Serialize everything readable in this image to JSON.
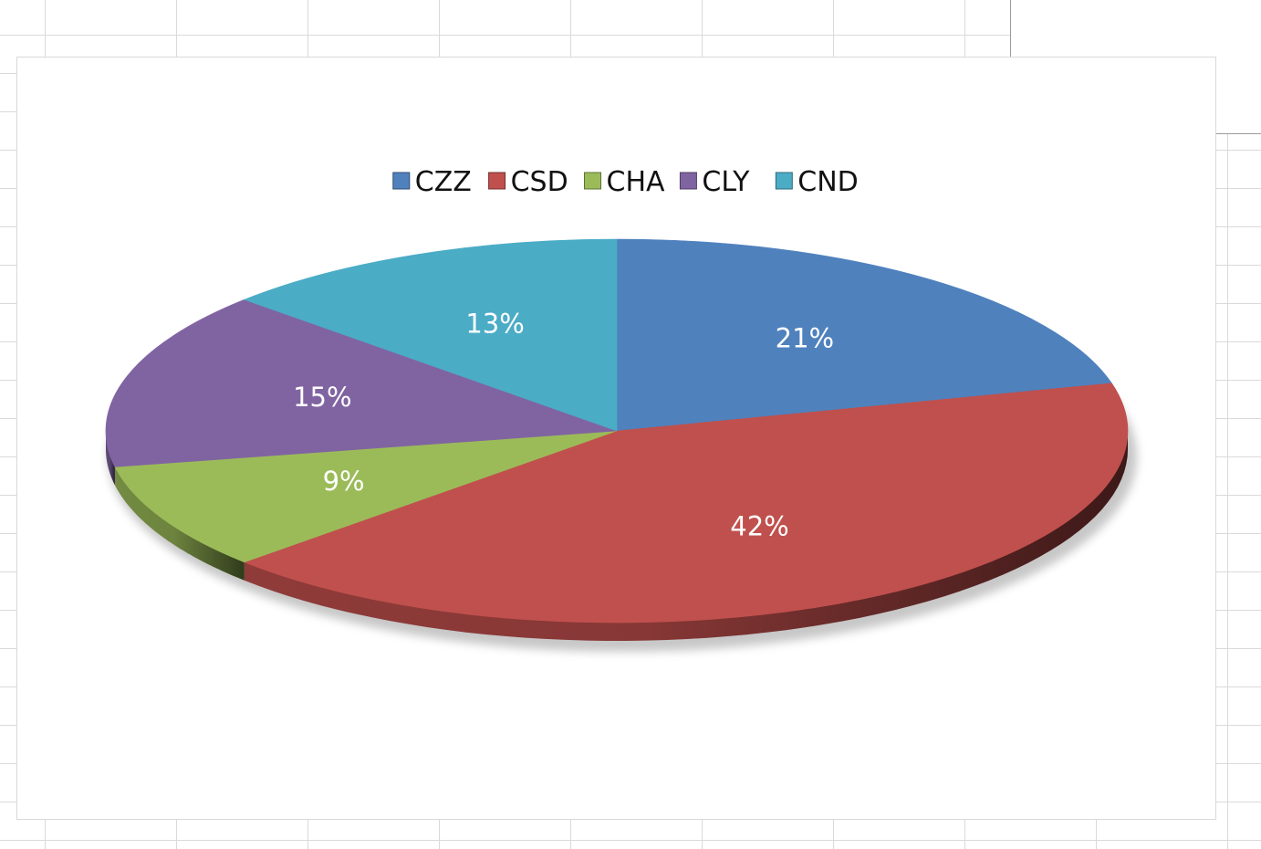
{
  "chart_data": {
    "type": "pie",
    "categories": [
      "CZZ",
      "CSD",
      "CHA",
      "CLY",
      "CND"
    ],
    "values": [
      21,
      42,
      9,
      15,
      13
    ],
    "labels": [
      "21%",
      "42%",
      "9%",
      "15%",
      "13%"
    ],
    "colors": [
      "#4f81bd",
      "#c0504d",
      "#9bbb59",
      "#8064a2",
      "#4bacc6"
    ],
    "legend_position": "top",
    "style": "3d-tilted",
    "title": ""
  }
}
